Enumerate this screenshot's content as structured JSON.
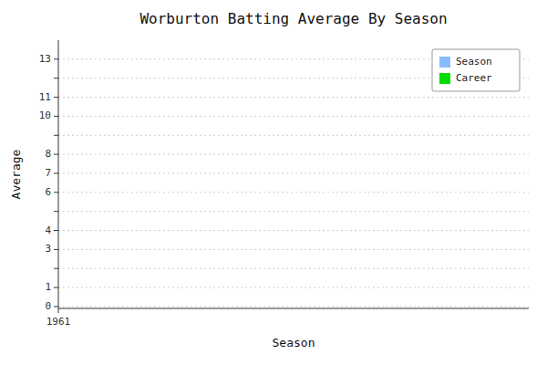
{
  "chart_data": {
    "type": "bar",
    "title": "Worburton Batting Average By Season",
    "xlabel": "Season",
    "ylabel": "Average",
    "x": [],
    "series": [
      {
        "name": "Season",
        "color": "#88bbff",
        "values": []
      },
      {
        "name": "Career",
        "color": "#00dd00",
        "values": []
      }
    ],
    "xlim": [
      1961,
      1975
    ],
    "xticks": [
      1961
    ],
    "ylim": [
      -0.1,
      14
    ],
    "yticks": [
      0,
      1,
      {
        "value": 2,
        "label": null
      },
      3,
      4,
      {
        "value": 5,
        "label": null
      },
      6,
      7,
      8,
      {
        "value": 9,
        "label": null
      },
      10,
      11,
      {
        "value": 12,
        "label": null
      },
      13
    ],
    "grid": true,
    "legend": "upper right"
  }
}
